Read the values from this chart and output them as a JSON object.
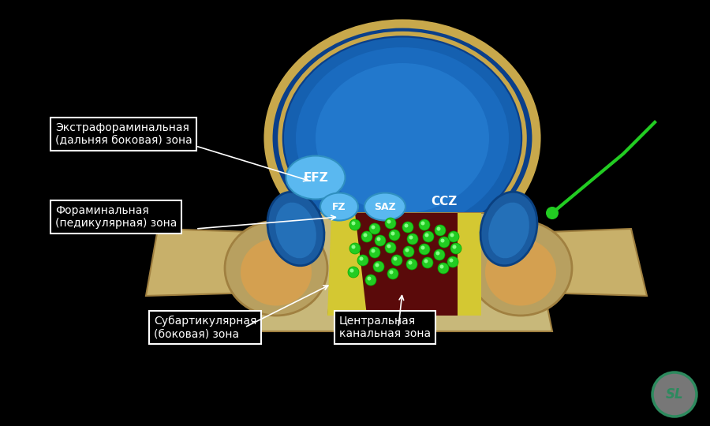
{
  "bg_color": "#000000",
  "title": "",
  "labels": {
    "efz_box": "Экстрафораминальная\n(дальняя боковая) зона",
    "efz_code": "EFZ",
    "fz_code": "FZ",
    "saz_code": "SAZ",
    "ccz_code": "CCZ",
    "fz_box": "Фораминальная\n(педикулярная) зона",
    "sub_box": "Субартикулярная\n(боковая) зона",
    "central_box": "Центральная\nканальная зона"
  },
  "vertebra_body_color": "#1a6eb5",
  "vertebra_outline_color": "#c8a84b",
  "vertebra_bone_color": "#c8b87a",
  "dark_canal_color": "#5a0a0a",
  "yellow_ligament_color": "#d4c832",
  "nerve_green": "#22cc22",
  "efz_color": "#4ab0e8",
  "fz_color": "#4ab0e8",
  "saz_color": "#4ab0e8",
  "white_text": "#ffffff",
  "box_bg": "#000000",
  "box_edge": "#ffffff",
  "logo_color": "#2d8a5e",
  "logo_bg": "#888888"
}
